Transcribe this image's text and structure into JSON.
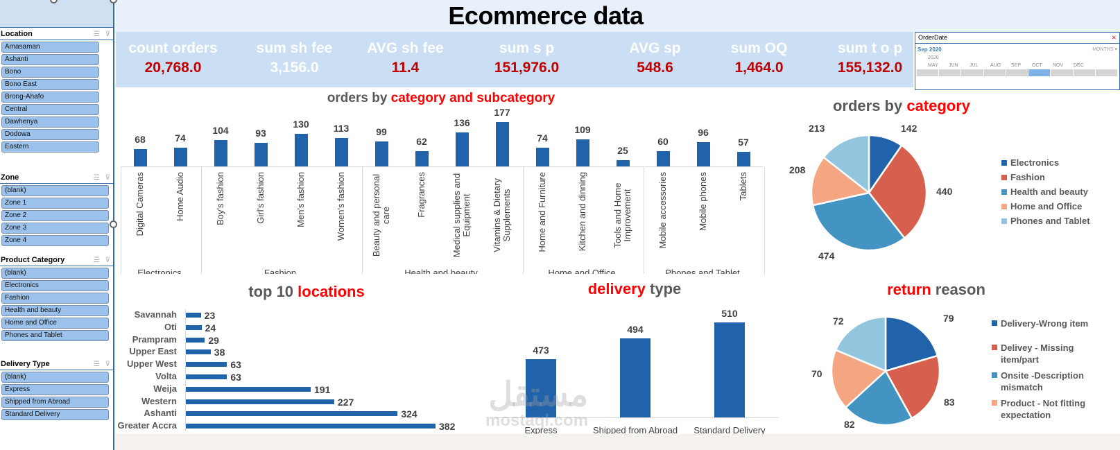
{
  "title": "Ecommerce data",
  "kpis": [
    {
      "label": "count orders",
      "value": "20,768.0",
      "value_color": "red"
    },
    {
      "label": "sum sh fee",
      "value": "3,156.0",
      "value_color": "white"
    },
    {
      "label": "AVG sh fee",
      "value": "11.4",
      "value_color": "red"
    },
    {
      "label": "sum s p",
      "value": "151,976.0",
      "value_color": "red"
    },
    {
      "label": "AVG sp",
      "value": "548.6",
      "value_color": "red"
    },
    {
      "label": "sum OQ",
      "value": "1,464.0",
      "value_color": "red"
    },
    {
      "label": "sum t o p",
      "value": "155,132.0",
      "value_color": "red"
    }
  ],
  "slicers": {
    "location": {
      "title": "Location",
      "items": [
        "Amasaman",
        "Ashanti",
        "Bono",
        "Bono East",
        "Brong-Ahafo",
        "Central",
        "Dawhenya",
        "Dodowa",
        "Eastern"
      ]
    },
    "zone": {
      "title": "Zone",
      "items": [
        "(blank)",
        "Zone 1",
        "Zone 2",
        "Zone 3",
        "Zone 4"
      ]
    },
    "product_category": {
      "title": "Product Category",
      "items": [
        "(blank)",
        "Electronics",
        "Fashion",
        "Health and beauty",
        "Home and Office",
        "Phones and Tablet"
      ]
    },
    "delivery_type": {
      "title": "Delivery Type",
      "items": [
        "(blank)",
        "Express",
        "Shipped from Abroad",
        "Standard Delivery"
      ]
    }
  },
  "timeline": {
    "title": "OrderDate",
    "selected": "Sep 2020",
    "level": "MONTHS",
    "year": "2020",
    "months": [
      "MAY",
      "JUN",
      "JUL",
      "AUG",
      "SEP",
      "OCT",
      "NOV",
      "DEC"
    ],
    "selected_month": "SEP"
  },
  "watermark": {
    "arabic": "مستقل",
    "latin": "mostaql.com"
  },
  "colors": {
    "bar": "#2163aa",
    "title_red": "#ff0000",
    "kpi_red": "#c00000",
    "kpi_bg": "#cadff3",
    "slicer_item": "#9bc2ec",
    "pie": [
      "#2163aa",
      "#d65f4d",
      "#4393c3",
      "#f4a582",
      "#92c5de"
    ]
  },
  "chart_data": [
    {
      "type": "bar",
      "title_parts": [
        "orders by ",
        "category and subcategory"
      ],
      "title": "orders by category and subcategory",
      "groups": [
        {
          "name": "Electronics",
          "categories": [
            "Digital Cameras",
            "Home Audio"
          ],
          "values": [
            68,
            74
          ]
        },
        {
          "name": "Fashion",
          "categories": [
            "Boy's fashion",
            "Girl's fashion",
            "Men's fashion",
            "Women's fashion"
          ],
          "values": [
            104,
            93,
            130,
            113
          ]
        },
        {
          "name": "Health and beauty",
          "categories": [
            "Beauty and personal care",
            "Fragrances",
            "Medical supplies and Equipment",
            "Vitamins & Dietary Supplements"
          ],
          "values": [
            99,
            62,
            136,
            177
          ]
        },
        {
          "name": "Home and Office",
          "categories": [
            "Home and Furniture",
            "Kitchen and dinning",
            "Tools and Home Improvement"
          ],
          "values": [
            74,
            109,
            25
          ]
        },
        {
          "name": "Phones and Tablet",
          "categories": [
            "Mobile accessories",
            "Mobile phones",
            "Tablets"
          ],
          "values": [
            60,
            96,
            57
          ]
        }
      ],
      "categories": [
        "Digital Cameras",
        "Home Audio",
        "Boy's fashion",
        "Girl's fashion",
        "Men's fashion",
        "Women's fashion",
        "Beauty and personal care",
        "Fragrances",
        "Medical supplies and Equipment",
        "Vitamins & Dietary Supplements",
        "Home and Furniture",
        "Kitchen and dinning",
        "Tools and Home Improvement",
        "Mobile accessories",
        "Mobile phones",
        "Tablets"
      ],
      "values": [
        68,
        74,
        104,
        93,
        130,
        113,
        99,
        62,
        136,
        177,
        74,
        109,
        25,
        60,
        96,
        57
      ],
      "xlabel": "",
      "ylabel": "",
      "grid": false
    },
    {
      "type": "pie",
      "title_parts": [
        "orders by ",
        "category"
      ],
      "title": "orders by category",
      "categories": [
        "Electronics",
        "Fashion",
        "Health and beauty",
        "Home and Office",
        "Phones and Tablet"
      ],
      "values": [
        142,
        440,
        474,
        208,
        213
      ],
      "legend_position": "right"
    },
    {
      "type": "bar",
      "orientation": "horizontal",
      "title_parts": [
        "top 10 ",
        "locations"
      ],
      "title": "top 10 locations",
      "categories": [
        "Savannah",
        "Oti",
        "Prampram",
        "Upper East",
        "Upper West",
        "Volta",
        "Weija",
        "Western",
        "Ashanti",
        "Greater Accra"
      ],
      "values": [
        23,
        24,
        29,
        38,
        63,
        63,
        191,
        227,
        324,
        382
      ],
      "grid": false
    },
    {
      "type": "bar",
      "title_parts": [
        "delivery",
        " type"
      ],
      "title": "delivery type",
      "categories": [
        "Express",
        "Shipped from Abroad",
        "Standard Delivery"
      ],
      "values": [
        473,
        494,
        510
      ],
      "grid": false
    },
    {
      "type": "pie",
      "title_parts": [
        "return",
        " reason"
      ],
      "title": "return reason",
      "categories": [
        "Delivery-Wrong item",
        "Delivey - Missing item/part",
        "Onsite -Description mismatch",
        "Product - Not fitting expectation",
        "(unlabeled)"
      ],
      "legend": [
        "Delivery-Wrong item",
        "Delivey - Missing item/part",
        "Onsite -Description mismatch",
        "Product - Not fitting expectation"
      ],
      "values": [
        79,
        83,
        82,
        70,
        72
      ],
      "legend_position": "right"
    }
  ]
}
